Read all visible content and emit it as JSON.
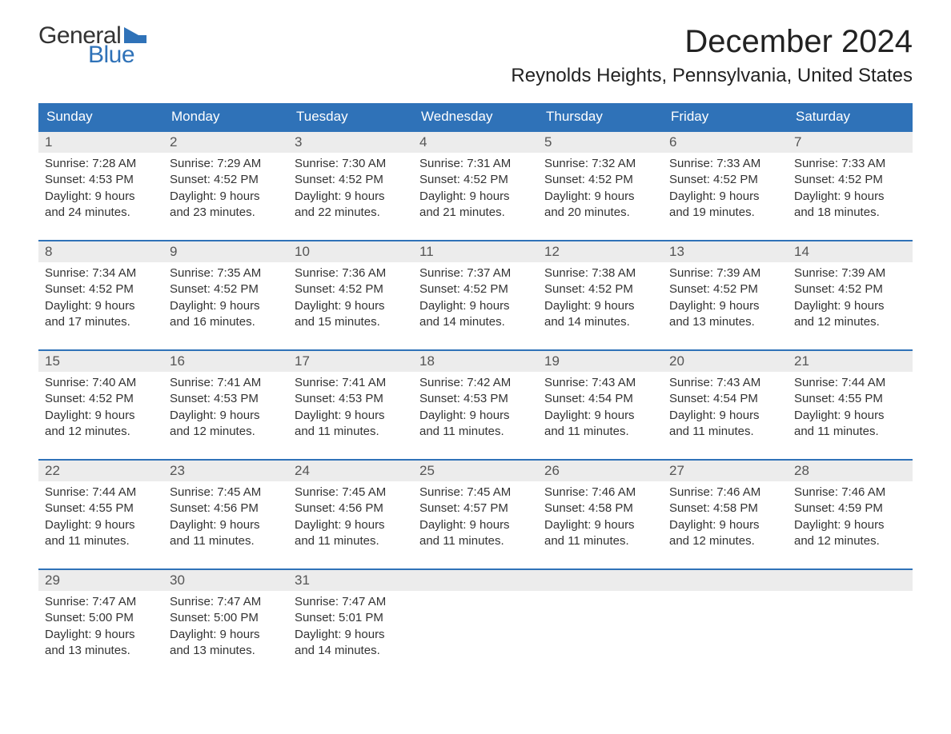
{
  "logo": {
    "word1": "General",
    "word2": "Blue",
    "flag_color": "#2f72b8"
  },
  "title": "December 2024",
  "location": "Reynolds Heights, Pennsylvania, United States",
  "colors": {
    "header_bg": "#2f72b8",
    "header_text": "#ffffff",
    "daynum_bg": "#ececec",
    "daynum_text": "#555555",
    "border": "#2f72b8",
    "body_text": "#333333"
  },
  "days_of_week": [
    "Sunday",
    "Monday",
    "Tuesday",
    "Wednesday",
    "Thursday",
    "Friday",
    "Saturday"
  ],
  "weeks": [
    [
      {
        "n": "1",
        "sunrise": "Sunrise: 7:28 AM",
        "sunset": "Sunset: 4:53 PM",
        "dl1": "Daylight: 9 hours",
        "dl2": "and 24 minutes."
      },
      {
        "n": "2",
        "sunrise": "Sunrise: 7:29 AM",
        "sunset": "Sunset: 4:52 PM",
        "dl1": "Daylight: 9 hours",
        "dl2": "and 23 minutes."
      },
      {
        "n": "3",
        "sunrise": "Sunrise: 7:30 AM",
        "sunset": "Sunset: 4:52 PM",
        "dl1": "Daylight: 9 hours",
        "dl2": "and 22 minutes."
      },
      {
        "n": "4",
        "sunrise": "Sunrise: 7:31 AM",
        "sunset": "Sunset: 4:52 PM",
        "dl1": "Daylight: 9 hours",
        "dl2": "and 21 minutes."
      },
      {
        "n": "5",
        "sunrise": "Sunrise: 7:32 AM",
        "sunset": "Sunset: 4:52 PM",
        "dl1": "Daylight: 9 hours",
        "dl2": "and 20 minutes."
      },
      {
        "n": "6",
        "sunrise": "Sunrise: 7:33 AM",
        "sunset": "Sunset: 4:52 PM",
        "dl1": "Daylight: 9 hours",
        "dl2": "and 19 minutes."
      },
      {
        "n": "7",
        "sunrise": "Sunrise: 7:33 AM",
        "sunset": "Sunset: 4:52 PM",
        "dl1": "Daylight: 9 hours",
        "dl2": "and 18 minutes."
      }
    ],
    [
      {
        "n": "8",
        "sunrise": "Sunrise: 7:34 AM",
        "sunset": "Sunset: 4:52 PM",
        "dl1": "Daylight: 9 hours",
        "dl2": "and 17 minutes."
      },
      {
        "n": "9",
        "sunrise": "Sunrise: 7:35 AM",
        "sunset": "Sunset: 4:52 PM",
        "dl1": "Daylight: 9 hours",
        "dl2": "and 16 minutes."
      },
      {
        "n": "10",
        "sunrise": "Sunrise: 7:36 AM",
        "sunset": "Sunset: 4:52 PM",
        "dl1": "Daylight: 9 hours",
        "dl2": "and 15 minutes."
      },
      {
        "n": "11",
        "sunrise": "Sunrise: 7:37 AM",
        "sunset": "Sunset: 4:52 PM",
        "dl1": "Daylight: 9 hours",
        "dl2": "and 14 minutes."
      },
      {
        "n": "12",
        "sunrise": "Sunrise: 7:38 AM",
        "sunset": "Sunset: 4:52 PM",
        "dl1": "Daylight: 9 hours",
        "dl2": "and 14 minutes."
      },
      {
        "n": "13",
        "sunrise": "Sunrise: 7:39 AM",
        "sunset": "Sunset: 4:52 PM",
        "dl1": "Daylight: 9 hours",
        "dl2": "and 13 minutes."
      },
      {
        "n": "14",
        "sunrise": "Sunrise: 7:39 AM",
        "sunset": "Sunset: 4:52 PM",
        "dl1": "Daylight: 9 hours",
        "dl2": "and 12 minutes."
      }
    ],
    [
      {
        "n": "15",
        "sunrise": "Sunrise: 7:40 AM",
        "sunset": "Sunset: 4:52 PM",
        "dl1": "Daylight: 9 hours",
        "dl2": "and 12 minutes."
      },
      {
        "n": "16",
        "sunrise": "Sunrise: 7:41 AM",
        "sunset": "Sunset: 4:53 PM",
        "dl1": "Daylight: 9 hours",
        "dl2": "and 12 minutes."
      },
      {
        "n": "17",
        "sunrise": "Sunrise: 7:41 AM",
        "sunset": "Sunset: 4:53 PM",
        "dl1": "Daylight: 9 hours",
        "dl2": "and 11 minutes."
      },
      {
        "n": "18",
        "sunrise": "Sunrise: 7:42 AM",
        "sunset": "Sunset: 4:53 PM",
        "dl1": "Daylight: 9 hours",
        "dl2": "and 11 minutes."
      },
      {
        "n": "19",
        "sunrise": "Sunrise: 7:43 AM",
        "sunset": "Sunset: 4:54 PM",
        "dl1": "Daylight: 9 hours",
        "dl2": "and 11 minutes."
      },
      {
        "n": "20",
        "sunrise": "Sunrise: 7:43 AM",
        "sunset": "Sunset: 4:54 PM",
        "dl1": "Daylight: 9 hours",
        "dl2": "and 11 minutes."
      },
      {
        "n": "21",
        "sunrise": "Sunrise: 7:44 AM",
        "sunset": "Sunset: 4:55 PM",
        "dl1": "Daylight: 9 hours",
        "dl2": "and 11 minutes."
      }
    ],
    [
      {
        "n": "22",
        "sunrise": "Sunrise: 7:44 AM",
        "sunset": "Sunset: 4:55 PM",
        "dl1": "Daylight: 9 hours",
        "dl2": "and 11 minutes."
      },
      {
        "n": "23",
        "sunrise": "Sunrise: 7:45 AM",
        "sunset": "Sunset: 4:56 PM",
        "dl1": "Daylight: 9 hours",
        "dl2": "and 11 minutes."
      },
      {
        "n": "24",
        "sunrise": "Sunrise: 7:45 AM",
        "sunset": "Sunset: 4:56 PM",
        "dl1": "Daylight: 9 hours",
        "dl2": "and 11 minutes."
      },
      {
        "n": "25",
        "sunrise": "Sunrise: 7:45 AM",
        "sunset": "Sunset: 4:57 PM",
        "dl1": "Daylight: 9 hours",
        "dl2": "and 11 minutes."
      },
      {
        "n": "26",
        "sunrise": "Sunrise: 7:46 AM",
        "sunset": "Sunset: 4:58 PM",
        "dl1": "Daylight: 9 hours",
        "dl2": "and 11 minutes."
      },
      {
        "n": "27",
        "sunrise": "Sunrise: 7:46 AM",
        "sunset": "Sunset: 4:58 PM",
        "dl1": "Daylight: 9 hours",
        "dl2": "and 12 minutes."
      },
      {
        "n": "28",
        "sunrise": "Sunrise: 7:46 AM",
        "sunset": "Sunset: 4:59 PM",
        "dl1": "Daylight: 9 hours",
        "dl2": "and 12 minutes."
      }
    ],
    [
      {
        "n": "29",
        "sunrise": "Sunrise: 7:47 AM",
        "sunset": "Sunset: 5:00 PM",
        "dl1": "Daylight: 9 hours",
        "dl2": "and 13 minutes."
      },
      {
        "n": "30",
        "sunrise": "Sunrise: 7:47 AM",
        "sunset": "Sunset: 5:00 PM",
        "dl1": "Daylight: 9 hours",
        "dl2": "and 13 minutes."
      },
      {
        "n": "31",
        "sunrise": "Sunrise: 7:47 AM",
        "sunset": "Sunset: 5:01 PM",
        "dl1": "Daylight: 9 hours",
        "dl2": "and 14 minutes."
      },
      {
        "empty": true
      },
      {
        "empty": true
      },
      {
        "empty": true
      },
      {
        "empty": true
      }
    ]
  ]
}
